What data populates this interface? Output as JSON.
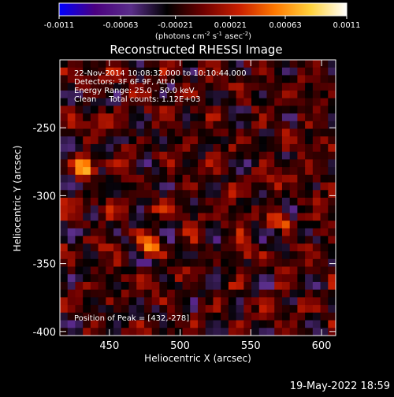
{
  "chart_data": {
    "type": "heatmap",
    "title": "Reconstructed RHESSI Image",
    "xlabel": "Heliocentric X (arcsec)",
    "ylabel": "Heliocentric Y (arcsec)",
    "xlim": [
      415,
      610
    ],
    "ylim": [
      -403,
      -200
    ],
    "x_ticks": [
      450,
      500,
      550,
      600
    ],
    "y_ticks": [
      -250,
      -300,
      -350,
      -400
    ],
    "colorbar": {
      "range": [
        -0.0011,
        0.0011
      ],
      "ticks": [
        "-0.0011",
        "-0.00063",
        "-0.00021",
        "0.00021",
        "0.00063",
        "0.0011"
      ],
      "unit_label": {
        "pre": "(photons cm",
        "exp1": "-2",
        "mid1": " s",
        "exp2": "-1",
        "mid2": " asec",
        "exp3": "-2",
        "post": ")"
      }
    },
    "info_lines": [
      "22-Nov-2014 10:08:32.000 to 10:10:44.000",
      "Detectors: 3F 6F 9F, Att 0",
      "Energy Range: 25.0 - 50.0 keV",
      "Clean     Total counts: 1.12E+03"
    ],
    "peak_label": "Position of Peak = [432,-278]",
    "peak": [
      432,
      -278
    ],
    "sources": [
      {
        "x": 432,
        "y": -278,
        "amplitude": 1.0
      },
      {
        "x": 480,
        "y": -337,
        "amplitude": 0.8
      },
      {
        "x": 570,
        "y": -318,
        "amplitude": 0.55
      }
    ]
  },
  "footer": {
    "timestamp": "19-May-2022 18:59"
  },
  "colors": {
    "background": "#000000",
    "text": "#ffffff",
    "colormap": [
      "#0000ff",
      "#4b007f",
      "#5a2e8a",
      "#000000",
      "#6e0000",
      "#c81e00",
      "#ff7800",
      "#ffd23c",
      "#ffffff"
    ]
  }
}
